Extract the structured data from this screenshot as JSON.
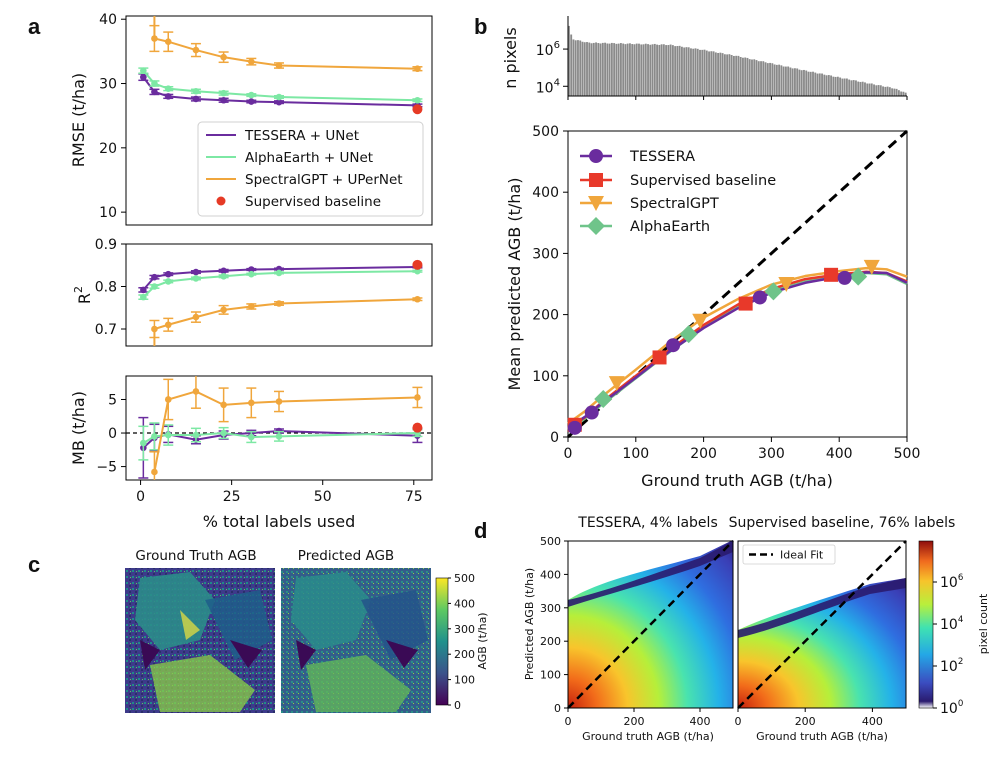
{
  "panel_labels": {
    "a": "a",
    "b": "b",
    "c": "c",
    "d": "d"
  },
  "colors": {
    "tessera": "#6a2c9e",
    "alphaearth": "#7de8a4",
    "spectralgpt": "#f0a63c",
    "supervised": "#e63a25",
    "supervised_b": "#e8392a",
    "bars": "#8a8a8a",
    "ideal": "#000000"
  },
  "chart_data": [
    {
      "id": "a1",
      "type": "line",
      "ylabel": "RMSE (t/ha)",
      "ylim": [
        8,
        40.5
      ],
      "xlim": [
        -4,
        80
      ],
      "yticks": [
        10,
        20,
        30,
        40
      ],
      "x": [
        0.76,
        3.8,
        7.6,
        15.2,
        22.8,
        30.4,
        38,
        76
      ],
      "series": [
        {
          "name": "TESSERA + UNet",
          "values": [
            31.0,
            28.7,
            28.0,
            27.6,
            27.4,
            27.2,
            27.1,
            26.6
          ],
          "err": [
            0.5,
            0.4,
            0.3,
            0.3,
            0.3,
            0.2,
            0.2,
            0.2
          ]
        },
        {
          "name": "AlphaEarth + UNet",
          "values": [
            32.0,
            30.0,
            29.2,
            28.8,
            28.5,
            28.2,
            27.9,
            27.4
          ],
          "err": [
            0.4,
            0.4,
            0.3,
            0.3,
            0.3,
            0.2,
            0.2,
            0.2
          ]
        },
        {
          "name": "SpectralGPT + UPerNet",
          "values": [
            null,
            37.0,
            36.5,
            35.2,
            34.1,
            33.4,
            32.8,
            32.3
          ],
          "err": [
            0,
            2.0,
            1.5,
            1.0,
            0.8,
            0.5,
            0.4,
            0.3
          ]
        }
      ],
      "point": {
        "name": "Supervised baseline",
        "x": 76,
        "y": 26.0
      },
      "legend": [
        "TESSERA + UNet",
        "AlphaEarth + UNet",
        "SpectralGPT + UPerNet",
        "Supervised baseline"
      ]
    },
    {
      "id": "a2",
      "type": "line",
      "ylabel": "R",
      "ylabel_sup": "2",
      "ylim": [
        0.66,
        0.9
      ],
      "xlim": [
        -4,
        80
      ],
      "yticks": [
        "0.7",
        "0.8",
        "0.9"
      ],
      "ytick_values": [
        0.7,
        0.8,
        0.9
      ],
      "x": [
        0.76,
        3.8,
        7.6,
        15.2,
        22.8,
        30.4,
        38,
        76
      ],
      "series": [
        {
          "name": "TESSERA + UNet",
          "values": [
            0.792,
            0.822,
            0.829,
            0.834,
            0.837,
            0.84,
            0.841,
            0.846
          ],
          "err": [
            0.005,
            0.004,
            0.003,
            0.003,
            0.003,
            0.002,
            0.002,
            0.002
          ]
        },
        {
          "name": "AlphaEarth + UNet",
          "values": [
            0.775,
            0.8,
            0.812,
            0.819,
            0.824,
            0.829,
            0.832,
            0.836
          ],
          "err": [
            0.005,
            0.004,
            0.003,
            0.003,
            0.003,
            0.002,
            0.002,
            0.002
          ]
        },
        {
          "name": "SpectralGPT + UPerNet",
          "values": [
            null,
            0.7,
            0.71,
            0.728,
            0.745,
            0.753,
            0.76,
            0.77
          ],
          "err": [
            0,
            0.02,
            0.015,
            0.012,
            0.01,
            0.006,
            0.004,
            0.003
          ]
        }
      ],
      "point": {
        "name": "Supervised baseline",
        "x": 76,
        "y": 0.851
      }
    },
    {
      "id": "a3",
      "type": "line",
      "ylabel": "MB (t/ha)",
      "xlabel": "% total labels used",
      "ylim": [
        -7,
        8.5
      ],
      "xlim": [
        -4,
        80
      ],
      "yticks": [
        "−5",
        "0",
        "5"
      ],
      "ytick_values": [
        -5,
        0,
        5
      ],
      "xticks": [
        "0",
        "25",
        "50",
        "75"
      ],
      "xtick_values": [
        0,
        25,
        50,
        75
      ],
      "x": [
        0.76,
        3.8,
        7.6,
        15.2,
        22.8,
        30.4,
        38,
        76
      ],
      "series": [
        {
          "name": "TESSERA + UNet",
          "values": [
            -2.2,
            -0.7,
            -0.2,
            -1.0,
            -0.3,
            0.0,
            0.3,
            -0.4
          ],
          "err": [
            4.5,
            2.0,
            1.2,
            0.6,
            0.6,
            0.4,
            0.3,
            1.0
          ]
        },
        {
          "name": "AlphaEarth + UNet",
          "values": [
            -1.5,
            -0.5,
            -0.3,
            -0.3,
            0.0,
            -0.6,
            -0.5,
            0.0
          ],
          "err": [
            2.5,
            2.0,
            1.5,
            1.0,
            0.8,
            0.8,
            0.7,
            0.5
          ]
        },
        {
          "name": "SpectralGPT + UPerNet",
          "values": [
            null,
            -5.8,
            5.0,
            6.2,
            4.2,
            4.5,
            4.7,
            5.3
          ],
          "err": [
            0,
            3.0,
            3.0,
            2.5,
            2.5,
            2.2,
            1.5,
            1.5
          ]
        }
      ],
      "point": {
        "name": "Supervised baseline",
        "x": 76,
        "y": 0.8
      }
    },
    {
      "id": "b-hist",
      "type": "bar",
      "ylabel": "n pixels",
      "yscale": "log",
      "ytick_labels": [
        {
          "base": "10",
          "exp": "4"
        },
        {
          "base": "10",
          "exp": "6"
        }
      ],
      "ytick_values": [
        10000,
        1000000
      ],
      "ylim": [
        3000,
        60000000
      ],
      "xlim": [
        0,
        500
      ],
      "envelope": [
        [
          0,
          3000000
        ],
        [
          2,
          25000000
        ],
        [
          6,
          3500000
        ],
        [
          30,
          2200000
        ],
        [
          100,
          1900000
        ],
        [
          150,
          1700000
        ],
        [
          200,
          900000
        ],
        [
          250,
          420000
        ],
        [
          300,
          170000
        ],
        [
          350,
          70000
        ],
        [
          400,
          30000
        ],
        [
          450,
          13000
        ],
        [
          480,
          8000
        ],
        [
          495,
          5000
        ],
        [
          500,
          4000
        ]
      ]
    },
    {
      "id": "b-main",
      "type": "line",
      "xlabel": "Ground truth AGB (t/ha)",
      "ylabel": "Mean predicted AGB (t/ha)",
      "xlim": [
        0,
        500
      ],
      "ylim": [
        0,
        500
      ],
      "ticks": [
        0,
        100,
        200,
        300,
        400,
        500
      ],
      "curve_x": [
        0,
        25,
        50,
        100,
        150,
        200,
        250,
        300,
        350,
        400,
        440,
        470,
        500
      ],
      "series": [
        {
          "name": "TESSERA",
          "curve": [
            15,
            33,
            55,
            97,
            140,
            178,
            210,
            236,
            252,
            262,
            269,
            268,
            252
          ],
          "markers_x": [
            10,
            35,
            155,
            283,
            408
          ],
          "markers_y": [
            15,
            40,
            150,
            228,
            260
          ]
        },
        {
          "name": "Supervised baseline",
          "curve": [
            14,
            32,
            57,
            100,
            143,
            183,
            216,
            242,
            258,
            266,
            270,
            268,
            254
          ],
          "markers_x": [
            10,
            135,
            262,
            388
          ],
          "markers_y": [
            20,
            130,
            218,
            265
          ]
        },
        {
          "name": "SpectralGPT",
          "curve": [
            22,
            42,
            66,
            110,
            155,
            195,
            225,
            249,
            263,
            271,
            276,
            274,
            262
          ],
          "markers_x": [
            72,
            195,
            322,
            448
          ],
          "markers_y": [
            88,
            190,
            250,
            278
          ]
        },
        {
          "name": "AlphaEarth",
          "curve": [
            12,
            30,
            53,
            96,
            139,
            179,
            212,
            238,
            254,
            263,
            268,
            266,
            250
          ],
          "markers_x": [
            52,
            178,
            303,
            428
          ],
          "markers_y": [
            62,
            168,
            238,
            262
          ]
        }
      ],
      "ideal_fit": [
        [
          0,
          0
        ],
        [
          500,
          500
        ]
      ],
      "legend": [
        "TESSERA",
        "Supervised baseline",
        "SpectralGPT",
        "AlphaEarth"
      ]
    },
    {
      "id": "d",
      "type": "heatmap",
      "titles": [
        "TESSERA, 4% labels",
        "Supervised baseline, 76% labels"
      ],
      "xlabel": "Ground truth AGB (t/ha)",
      "ylabel": "Predicted AGB (t/ha)",
      "xlim": [
        0,
        500
      ],
      "ylim": [
        0,
        500
      ],
      "xticks": [
        0,
        200,
        400
      ],
      "yticks": [
        0,
        100,
        200,
        300,
        400,
        500
      ],
      "legend": "Ideal Fit",
      "colorbar": {
        "label": "pixel count",
        "scale": "log",
        "ticks": [
          {
            "base": "10",
            "exp": "0"
          },
          {
            "base": "10",
            "exp": "2"
          },
          {
            "base": "10",
            "exp": "4"
          },
          {
            "base": "10",
            "exp": "6"
          }
        ]
      }
    },
    {
      "id": "c",
      "type": "heatmap",
      "titles": [
        "Ground Truth AGB",
        "Predicted AGB"
      ],
      "colorbar": {
        "label": "AGB (t/ha)",
        "ticks": [
          0,
          100,
          200,
          300,
          400,
          500
        ]
      }
    }
  ]
}
